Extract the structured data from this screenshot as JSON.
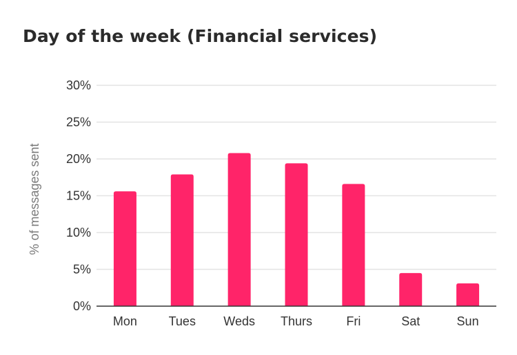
{
  "chart_data": {
    "type": "bar",
    "title": "Day of the week (Financial services)",
    "xlabel": "",
    "ylabel": "% of messages sent",
    "categories": [
      "Mon",
      "Tues",
      "Weds",
      "Thurs",
      "Fri",
      "Sat",
      "Sun"
    ],
    "values": [
      15.6,
      17.9,
      20.8,
      19.4,
      16.6,
      4.5,
      3.1
    ],
    "unit": "%",
    "ylim": [
      0,
      30
    ],
    "yticks": [
      0,
      5,
      10,
      15,
      20,
      25,
      30
    ],
    "ytick_labels": [
      "0%",
      "5%",
      "10%",
      "15%",
      "20%",
      "25%",
      "30%"
    ],
    "grid": true,
    "legend": "none",
    "bar_color": "#ff2469",
    "grid_color": "#e3e3e3",
    "axis_color": "#333333"
  }
}
